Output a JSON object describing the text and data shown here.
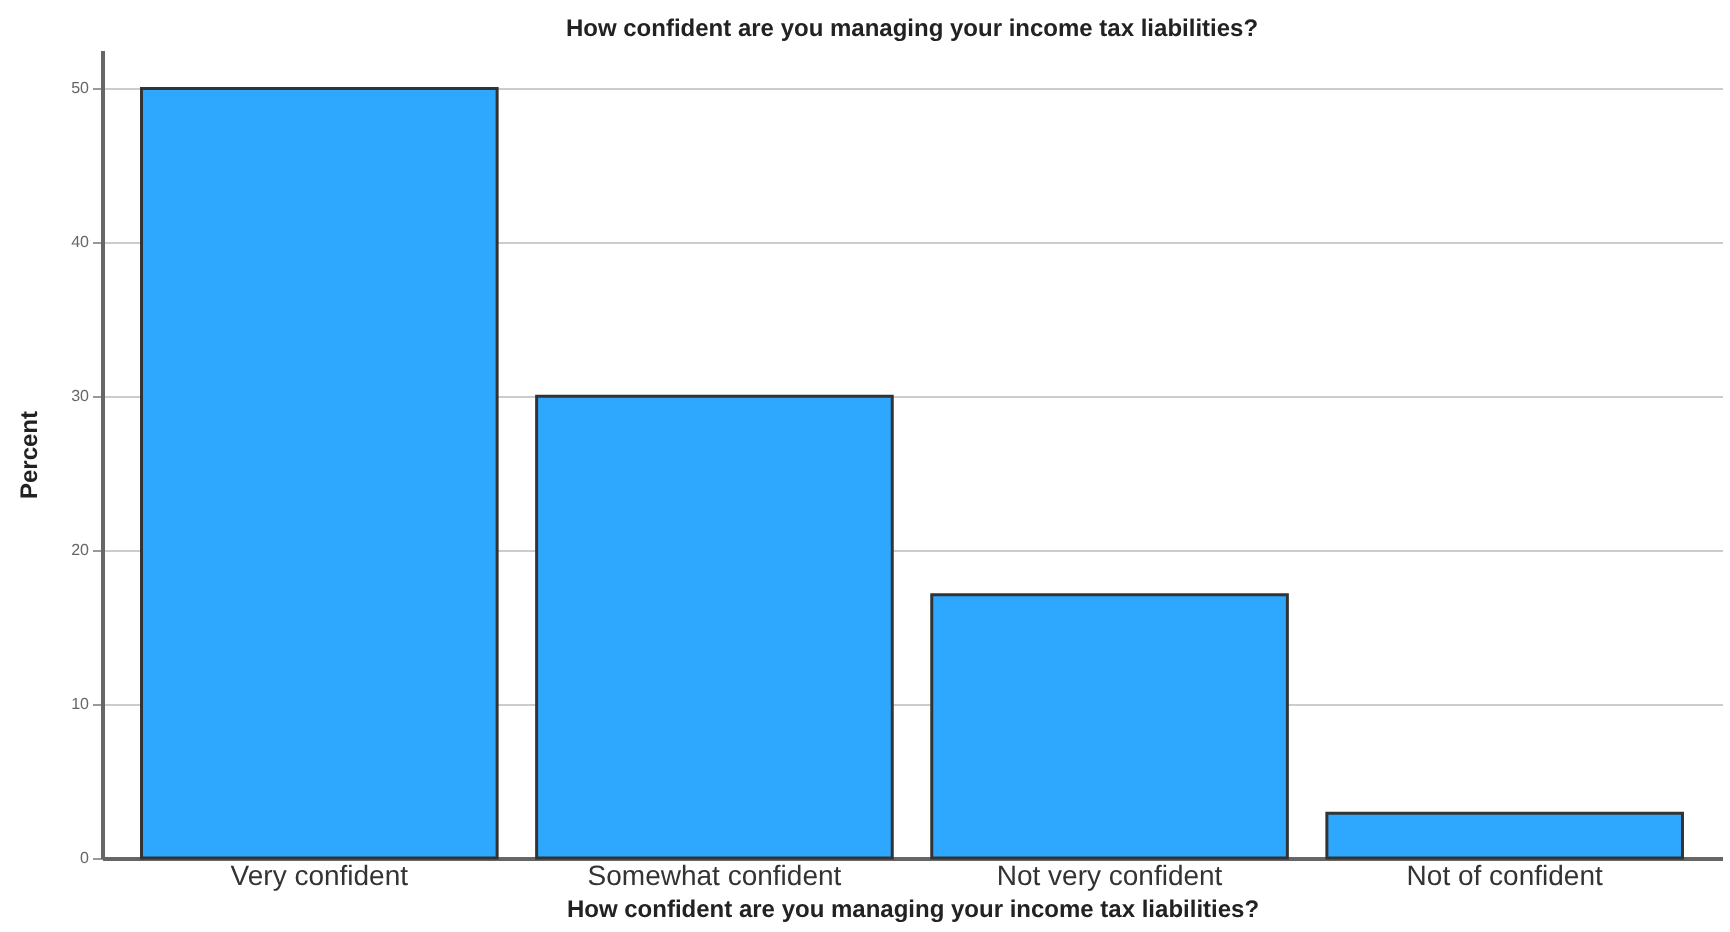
{
  "chart_data": {
    "type": "bar",
    "title": "How confident are you managing your income tax liabilities?",
    "xlabel": "How confident are you managing your income tax liabilities?",
    "ylabel": "Percent",
    "categories": [
      "Very confident",
      "Somewhat confident",
      "Not very confident",
      "Not of confident"
    ],
    "values": [
      50,
      30,
      17.1,
      2.9
    ],
    "color": "#2ea8ff",
    "ylim": [
      0,
      52.5
    ],
    "yticks": [
      0,
      10,
      20,
      30,
      40,
      50
    ],
    "grid": "y"
  }
}
